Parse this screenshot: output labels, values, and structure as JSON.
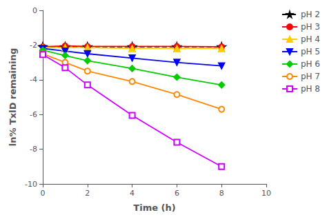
{
  "chart_data": {
    "type": "line",
    "xlabel": "Time (h)",
    "ylabel": "ln% TxlD remaining",
    "x": [
      0,
      1,
      2,
      4,
      6,
      8
    ],
    "series": [
      {
        "name": "pH 2",
        "color": "#000000",
        "marker": "star",
        "line_style": "dashed",
        "values": [
          -2.1,
          -2.1,
          -2.1,
          -2.1,
          -2.1,
          -2.1
        ]
      },
      {
        "name": "pH 3",
        "color": "#ff0000",
        "marker": "circle",
        "line_style": "solid",
        "values": [
          -2.1,
          -2.05,
          -2.08,
          -2.08,
          -2.08,
          -2.1
        ]
      },
      {
        "name": "pH 4",
        "color": "#ffcc00",
        "marker": "triangle",
        "line_style": "solid",
        "values": [
          -2.15,
          -2.15,
          -2.15,
          -2.2,
          -2.2,
          -2.2
        ]
      },
      {
        "name": "pH 5",
        "color": "#0000ff",
        "marker": "triangle-down",
        "line_style": "solid",
        "values": [
          -2.2,
          -2.35,
          -2.5,
          -2.75,
          -3.0,
          -3.2
        ]
      },
      {
        "name": "pH 6",
        "color": "#00cc00",
        "marker": "diamond",
        "line_style": "solid",
        "values": [
          -2.3,
          -2.6,
          -2.9,
          -3.35,
          -3.85,
          -4.3
        ]
      },
      {
        "name": "pH 7",
        "color": "#ff8800",
        "marker": "open-circle",
        "line_style": "solid",
        "values": [
          -2.5,
          -3.0,
          -3.5,
          -4.1,
          -4.85,
          -5.7
        ]
      },
      {
        "name": "pH 8",
        "color": "#cc00ff",
        "marker": "open-square",
        "line_style": "solid",
        "values": [
          -2.55,
          -3.3,
          -4.3,
          -6.05,
          -7.6,
          -9.0
        ]
      }
    ],
    "xlim": [
      0,
      10
    ],
    "ylim": [
      -10,
      0
    ],
    "xticks": [
      0,
      2,
      4,
      6,
      8,
      10
    ],
    "yticks": [
      0,
      -2,
      -4,
      -6,
      -8,
      -10
    ],
    "grid": false,
    "legend": "right"
  }
}
